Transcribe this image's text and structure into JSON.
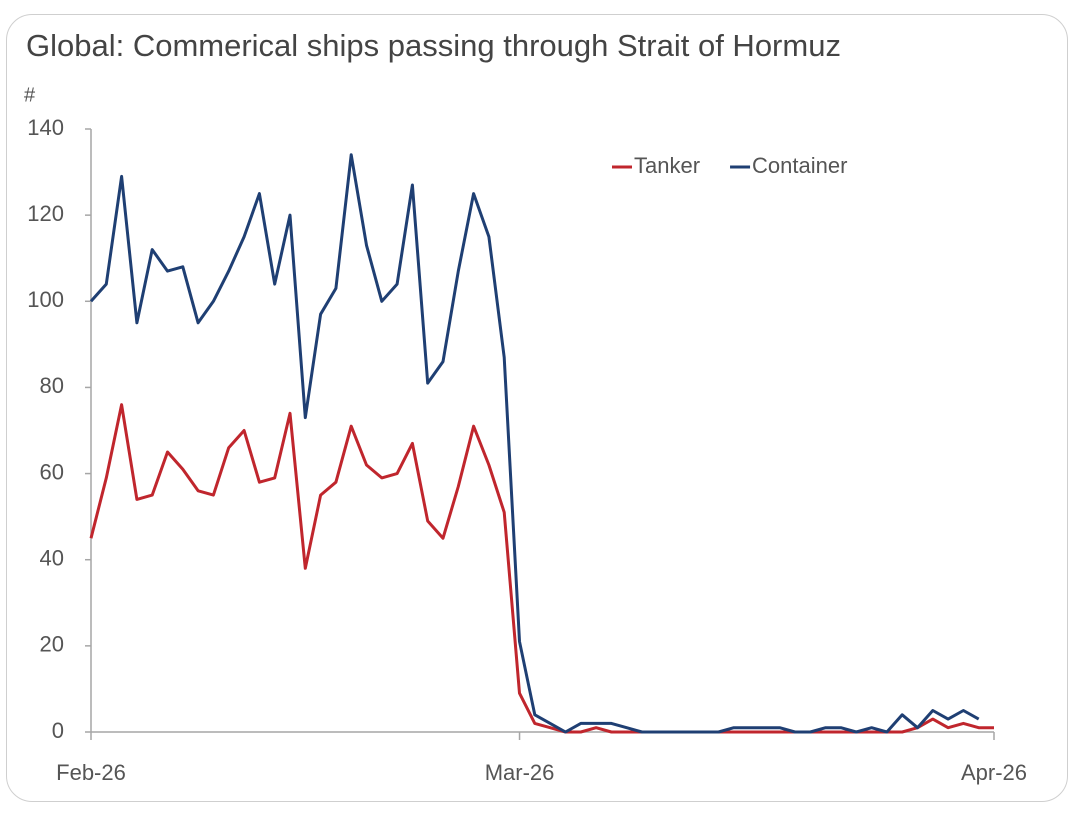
{
  "chart_data": {
    "type": "line",
    "title": "Global: Commerical ships passing through Strait of Hormuz",
    "y_label": "#",
    "categories": [
      "Feb-26",
      null,
      null,
      null,
      null,
      null,
      null,
      null,
      null,
      null,
      null,
      null,
      null,
      null,
      null,
      null,
      null,
      null,
      null,
      null,
      null,
      null,
      null,
      null,
      null,
      null,
      null,
      null,
      "Mar-26",
      null,
      null,
      null,
      null,
      null,
      null,
      null,
      null,
      null,
      null,
      null,
      null,
      null,
      null,
      null,
      null,
      null,
      null,
      null,
      null,
      null,
      null,
      null,
      null,
      null,
      null,
      null,
      null,
      null,
      null,
      "Apr-26"
    ],
    "series": [
      {
        "name": "Tanker",
        "color": "#c0262d",
        "values": [
          45,
          59,
          76,
          54,
          55,
          65,
          61,
          56,
          55,
          66,
          70,
          58,
          59,
          74,
          38,
          55,
          58,
          71,
          62,
          59,
          60,
          67,
          49,
          45,
          57,
          71,
          62,
          51,
          9,
          2,
          1,
          0,
          0,
          1,
          0,
          0,
          0,
          0,
          0,
          0,
          0,
          0,
          0,
          0,
          0,
          0,
          0,
          0,
          0,
          0,
          0,
          0,
          0,
          0,
          1,
          3,
          1,
          2,
          1,
          1
        ]
      },
      {
        "name": "Container",
        "color": "#1f3f73",
        "values": [
          100,
          104,
          129,
          95,
          112,
          107,
          108,
          95,
          100,
          107,
          115,
          125,
          104,
          120,
          73,
          97,
          103,
          134,
          113,
          100,
          104,
          127,
          81,
          86,
          107,
          125,
          115,
          87,
          21,
          4,
          2,
          0,
          2,
          2,
          2,
          1,
          0,
          0,
          0,
          0,
          0,
          0,
          1,
          1,
          1,
          1,
          0,
          0,
          1,
          1,
          0,
          1,
          0,
          4,
          1,
          5,
          3,
          5,
          3,
          null
        ]
      }
    ],
    "ylim": [
      0,
      140
    ],
    "yticks": [
      0,
      20,
      40,
      60,
      80,
      100,
      120,
      140
    ],
    "legend": "upper right",
    "grid": false
  }
}
